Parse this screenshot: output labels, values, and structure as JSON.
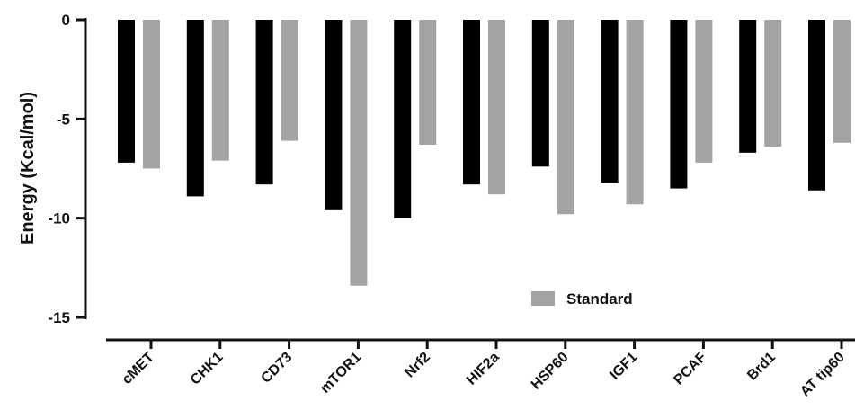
{
  "chart_data": {
    "type": "bar",
    "title": "",
    "xlabel": "",
    "ylabel": "Energy (Kcal/mol)",
    "ylim": [
      -15,
      0
    ],
    "yticks": [
      0,
      -5,
      -10,
      -15
    ],
    "categories": [
      "cMET",
      "CHK1",
      "CD73",
      "mTOR1",
      "Nrf2",
      "HIF2a",
      "HSP60",
      "IGF1",
      "PCAF",
      "Brd1",
      "AT tip60"
    ],
    "series": [
      {
        "name": "",
        "color": "#000000",
        "values": [
          -7.2,
          -8.9,
          -8.3,
          -9.6,
          -10.0,
          -8.3,
          -7.4,
          -8.2,
          -8.5,
          -6.7,
          -8.6
        ]
      },
      {
        "name": "Standard",
        "color": "#a3a3a3",
        "values": [
          -7.5,
          -7.1,
          -6.1,
          -13.4,
          -6.3,
          -8.8,
          -9.8,
          -9.3,
          -7.2,
          -6.4,
          -6.2
        ]
      }
    ],
    "legend": {
      "position": "bottom-right",
      "label": "Standard"
    },
    "grid": false
  }
}
